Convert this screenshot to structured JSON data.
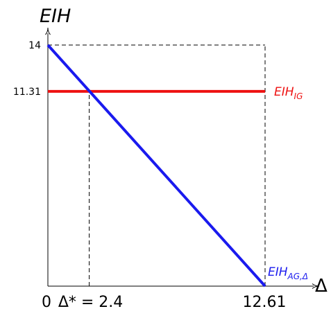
{
  "chart_data": {
    "type": "line",
    "ylabel": "EIH",
    "xlabel": "Δ",
    "xlim": [
      0,
      12.61
    ],
    "ylim": [
      0,
      14
    ],
    "x_tick_labels": [
      {
        "value": 0,
        "label": "0"
      },
      {
        "value": 2.4,
        "label": "Δ* = 2.4"
      },
      {
        "value": 12.61,
        "label": "12.61"
      }
    ],
    "y_tick_labels": [
      {
        "value": 14,
        "label": "14"
      },
      {
        "value": 11.31,
        "label": "11.31"
      }
    ],
    "series": [
      {
        "name": "EIH_IG",
        "label_main": "EIH",
        "label_sub": "IG",
        "color": "#ee1111",
        "x": [
          0,
          12.61
        ],
        "y": [
          11.31,
          11.31
        ]
      },
      {
        "name": "EIH_AG,Δ",
        "label_main": "EIH",
        "label_sub": "AG,Δ",
        "color": "#1a1aee",
        "x": [
          0,
          12.61
        ],
        "y": [
          14,
          0
        ]
      }
    ],
    "reference_lines": [
      {
        "x": [
          2.4,
          2.4
        ],
        "y": [
          0,
          11.31
        ]
      },
      {
        "x": [
          0,
          12.61
        ],
        "y": [
          14,
          14
        ]
      },
      {
        "x": [
          12.61,
          12.61
        ],
        "y": [
          0,
          14
        ]
      }
    ]
  }
}
